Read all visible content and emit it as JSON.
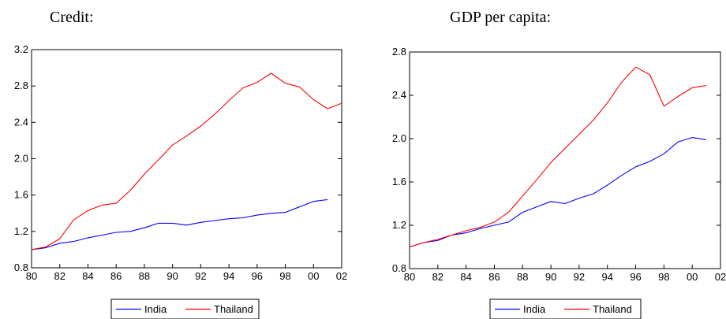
{
  "chart_data": [
    {
      "type": "line",
      "title": "Credit:",
      "xlabel": "",
      "ylabel": "",
      "xlim": [
        1980,
        2002
      ],
      "ylim": [
        0.8,
        3.2
      ],
      "grid": false,
      "legend_position": "bottom",
      "x_ticks": [
        1980,
        1982,
        1984,
        1986,
        1988,
        1990,
        1992,
        1994,
        1996,
        1998,
        2000,
        2002
      ],
      "x_tick_labels": [
        "80",
        "82",
        "84",
        "86",
        "88",
        "90",
        "92",
        "94",
        "96",
        "98",
        "00",
        "02"
      ],
      "y_ticks": [
        0.8,
        1.2,
        1.6,
        2.0,
        2.4,
        2.8,
        3.2
      ],
      "y_tick_labels": [
        "0.8",
        "1.2",
        "1.6",
        "2.0",
        "2.4",
        "2.8",
        "3.2"
      ],
      "x": [
        1980,
        1981,
        1982,
        1983,
        1984,
        1985,
        1986,
        1987,
        1988,
        1989,
        1990,
        1991,
        1992,
        1993,
        1994,
        1995,
        1996,
        1997,
        1998,
        1999,
        2000,
        2001,
        2002
      ],
      "series": [
        {
          "name": "India",
          "color": "#0000ff",
          "values": [
            1.0,
            1.02,
            1.07,
            1.09,
            1.13,
            1.16,
            1.19,
            1.2,
            1.24,
            1.29,
            1.29,
            1.27,
            1.3,
            1.32,
            1.34,
            1.35,
            1.38,
            1.4,
            1.41,
            1.47,
            1.53,
            1.55,
            null
          ]
        },
        {
          "name": "Thailand",
          "color": "#ff0000",
          "values": [
            1.0,
            1.03,
            1.12,
            1.33,
            1.43,
            1.49,
            1.51,
            1.65,
            1.83,
            1.99,
            2.15,
            2.25,
            2.36,
            2.49,
            2.64,
            2.78,
            2.84,
            2.94,
            2.83,
            2.79,
            2.65,
            2.55,
            2.61
          ]
        }
      ]
    },
    {
      "type": "line",
      "title": "GDP per capita:",
      "xlabel": "",
      "ylabel": "",
      "xlim": [
        1980,
        2002
      ],
      "ylim": [
        0.8,
        2.8
      ],
      "grid": false,
      "legend_position": "bottom",
      "x_ticks": [
        1980,
        1982,
        1984,
        1986,
        1988,
        1990,
        1992,
        1994,
        1996,
        1998,
        2000,
        2002
      ],
      "x_tick_labels": [
        "80",
        "82",
        "84",
        "86",
        "88",
        "90",
        "92",
        "94",
        "96",
        "98",
        "00",
        "02"
      ],
      "y_ticks": [
        0.8,
        1.2,
        1.6,
        2.0,
        2.4,
        2.8
      ],
      "y_tick_labels": [
        "0.8",
        "1.2",
        "1.6",
        "2.0",
        "2.4",
        "2.8"
      ],
      "x": [
        1980,
        1981,
        1982,
        1983,
        1984,
        1985,
        1986,
        1987,
        1988,
        1989,
        1990,
        1991,
        1992,
        1993,
        1994,
        1995,
        1996,
        1997,
        1998,
        1999,
        2000,
        2001
      ],
      "series": [
        {
          "name": "India",
          "color": "#0000ff",
          "values": [
            1.0,
            1.04,
            1.06,
            1.11,
            1.13,
            1.17,
            1.2,
            1.23,
            1.32,
            1.37,
            1.42,
            1.4,
            1.45,
            1.49,
            1.57,
            1.66,
            1.74,
            1.79,
            1.86,
            1.97,
            2.01,
            1.99
          ]
        },
        {
          "name": "Thailand",
          "color": "#ff0000",
          "values": [
            1.0,
            1.04,
            1.07,
            1.11,
            1.15,
            1.18,
            1.23,
            1.32,
            1.47,
            1.62,
            1.78,
            1.91,
            2.04,
            2.17,
            2.33,
            2.52,
            2.66,
            2.59,
            2.3,
            2.39,
            2.47,
            2.49
          ]
        }
      ]
    }
  ]
}
